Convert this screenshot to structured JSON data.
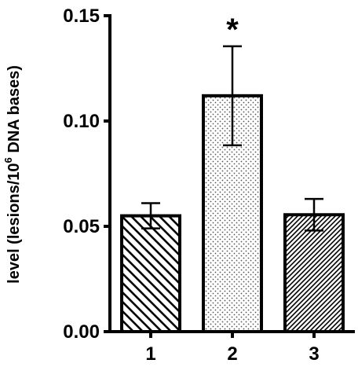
{
  "chart_data": {
    "type": "bar",
    "title": "",
    "xlabel": "",
    "ylabel": {
      "prefix": "level (lesions/10",
      "superscript": "6",
      "suffix": " DNA bases)"
    },
    "ylim": [
      0,
      0.15
    ],
    "yticks": [
      "0.00",
      "0.05",
      "0.10",
      "0.15"
    ],
    "categories": [
      "1",
      "2",
      "3"
    ],
    "values": [
      0.055,
      0.112,
      0.0555
    ],
    "errors": [
      0.006,
      0.0235,
      0.0075
    ],
    "patterns": [
      "diagonal-hatch-backslash",
      "dotted-fill",
      "diagonal-hatch-slash-dense"
    ],
    "annotations": [
      {
        "category": "2",
        "text": "*"
      }
    ],
    "grid": false,
    "legend": "none",
    "colors": {
      "stroke": "#000000",
      "background": "#ffffff",
      "dot_fill": "#aaaaaa"
    }
  }
}
